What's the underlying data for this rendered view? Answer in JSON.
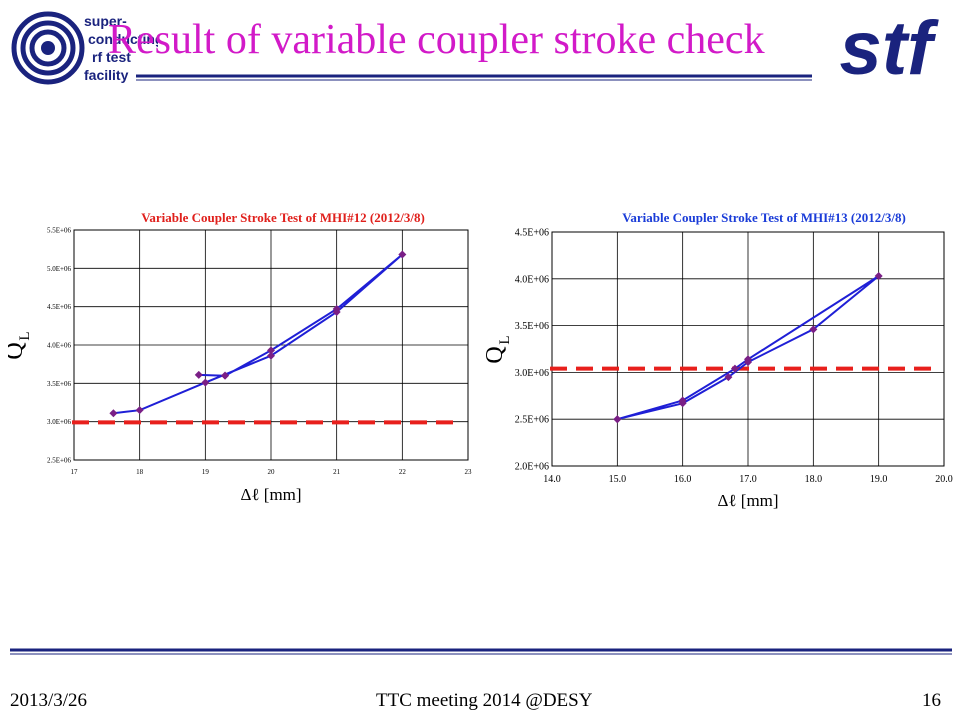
{
  "slide": {
    "title": "Result of variable coupler stroke check",
    "title_color": "#d21ac8",
    "logo_left": {
      "lines": [
        "super-",
        "conducting",
        "rf  test",
        "facility"
      ],
      "color": "#1a237e"
    },
    "logo_right": {
      "text": "stf",
      "color": "#1a237e"
    },
    "footer": {
      "date": "2013/3/26",
      "meeting": "TTC meeting 2014 @DESY",
      "page": "16"
    }
  },
  "chart_data": [
    {
      "type": "line",
      "title": "Variable Coupler Stroke Test of MHI#12 (2012/3/8)",
      "title_color": "#e0201c",
      "xlabel": "Δℓ [mm]",
      "ylabel_main": "Q",
      "ylabel_sub": "L",
      "xlim": [
        17,
        23
      ],
      "ylim": [
        2500000,
        5500000
      ],
      "xticks": [
        "17",
        "18",
        "19",
        "20",
        "21",
        "22",
        "23"
      ],
      "yticks": [
        "2.5E+06",
        "3.0E+06",
        "3.5E+06",
        "4.0E+06",
        "4.5E+06",
        "5.0E+06",
        "5.5E+06"
      ],
      "grid": true,
      "line_color": "#1f1fd6",
      "marker_color": "#7a1f86",
      "series": [
        {
          "values": [
            [
              17.6,
              3110000
            ],
            [
              18.0,
              3150000
            ],
            [
              19.0,
              3510000
            ],
            [
              20.0,
              3860000
            ],
            [
              21.0,
              4430000
            ],
            [
              22.0,
              5180000
            ],
            [
              21.0,
              4470000
            ],
            [
              20.0,
              3930000
            ],
            [
              19.3,
              3600000
            ],
            [
              18.9,
              3610000
            ],
            [
              19.3,
              3600000
            ]
          ]
        }
      ],
      "threshold": {
        "y": 2990000,
        "color": "#e8201c"
      }
    },
    {
      "type": "line",
      "title": "Variable Coupler Stroke Test of MHI#13 (2012/3/8)",
      "title_color": "#1a3cd8",
      "xlabel": "Δℓ [mm]",
      "ylabel_main": "Q",
      "ylabel_sub": "L",
      "xlim": [
        14.0,
        20.0
      ],
      "ylim": [
        2000000,
        4500000
      ],
      "xticks": [
        "14.0",
        "15.0",
        "16.0",
        "17.0",
        "18.0",
        "19.0",
        "20.0"
      ],
      "yticks": [
        "2.0E+06",
        "2.5E+06",
        "3.0E+06",
        "3.5E+06",
        "4.0E+06",
        "4.5E+06"
      ],
      "grid": true,
      "line_color": "#1f1fd6",
      "marker_color": "#7a1f86",
      "series": [
        {
          "values": [
            [
              15.0,
              2500000
            ],
            [
              16.0,
              2670000
            ],
            [
              16.7,
              2950000
            ],
            [
              17.0,
              3110000
            ],
            [
              18.0,
              3460000
            ],
            [
              19.0,
              4030000
            ],
            [
              17.0,
              3140000
            ],
            [
              16.8,
              3040000
            ],
            [
              16.0,
              2700000
            ],
            [
              15.0,
              2500000
            ]
          ]
        }
      ],
      "threshold": {
        "y": 3040000,
        "color": "#e8201c"
      }
    }
  ]
}
